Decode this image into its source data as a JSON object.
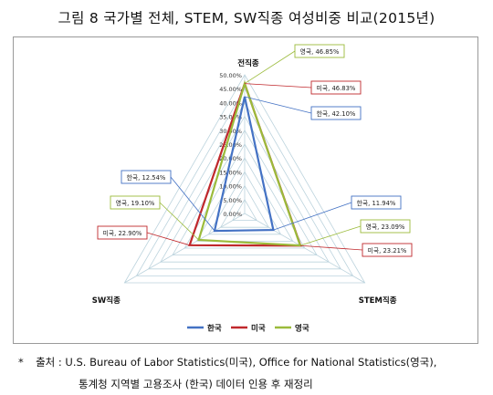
{
  "title": "그림 8 국가별 전체, STEM, SW직종 여성비중 비교(2015년)",
  "chart_data": {
    "type": "radar",
    "axes": [
      "전직종",
      "STEM직종",
      "SW직종"
    ],
    "rticks": [
      "0.00%",
      "5.00%",
      "10.00%",
      "15.00%",
      "20.00%",
      "25.00%",
      "30.00%",
      "35.00%",
      "40.00%",
      "45.00%",
      "50.00%"
    ],
    "rmax": 50,
    "series": [
      {
        "name": "한국",
        "color": "#4472c4",
        "values": [
          42.1,
          11.94,
          12.54
        ],
        "labels": [
          "한국, 42.10%",
          "한국, 11.94%",
          "한국, 12.54%"
        ]
      },
      {
        "name": "미국",
        "color": "#c0282c",
        "values": [
          46.83,
          23.21,
          22.9
        ],
        "labels": [
          "미국, 46.83%",
          "미국, 23.21%",
          "미국, 22.90%"
        ]
      },
      {
        "name": "영국",
        "color": "#9bbb3b",
        "values": [
          46.85,
          23.09,
          19.1
        ],
        "labels": [
          "영국, 46.85%",
          "영국, 23.09%",
          "영국, 19.10%"
        ]
      }
    ],
    "legend_position": "bottom"
  },
  "source": {
    "marker": "*",
    "line1_label": "출처 :",
    "line1": "U.S. Bureau of Labor Statistics(미국), Office for National Statistics(영국),",
    "line2": "통계청 지역별 고용조사 (한국) 데이터 인용 후 재정리"
  }
}
